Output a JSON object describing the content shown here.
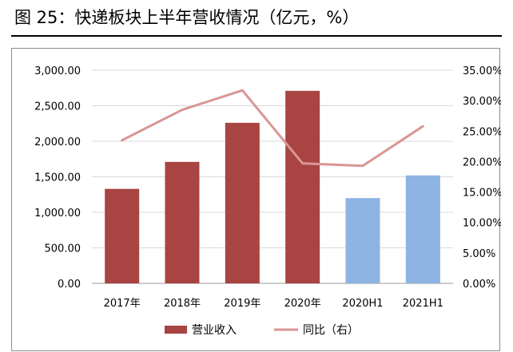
{
  "caption": "图 25：快递板块上半年营收情况（亿元，%）",
  "chart_data": {
    "type": "bar",
    "title": "",
    "categories": [
      "2017年",
      "2018年",
      "2019年",
      "2020年",
      "2020H1",
      "2021H1"
    ],
    "series": [
      {
        "name": "营业收入",
        "chart_type": "bar",
        "axis": "left",
        "values": [
          1330,
          1710,
          2260,
          2710,
          1200,
          1520
        ],
        "colors": [
          "#a84442",
          "#a84442",
          "#a84442",
          "#a84442",
          "#8db4e2",
          "#8db4e2"
        ]
      },
      {
        "name": "同比（右）",
        "chart_type": "line",
        "axis": "right",
        "values": [
          23.5,
          28.5,
          31.7,
          19.7,
          19.3,
          25.8
        ],
        "color": "#d99694"
      }
    ],
    "y_left": {
      "min": 0,
      "max": 3000,
      "ticks": [
        "0.00",
        "500.00",
        "1,000.00",
        "1,500.00",
        "2,000.00",
        "2,500.00",
        "3,000.00"
      ]
    },
    "y_right": {
      "min": 0,
      "max": 35,
      "ticks": [
        "0.00%",
        "5.00%",
        "10.00%",
        "15.00%",
        "20.00%",
        "25.00%",
        "30.00%",
        "35.00%"
      ]
    },
    "grid": true,
    "legend_position": "bottom"
  }
}
